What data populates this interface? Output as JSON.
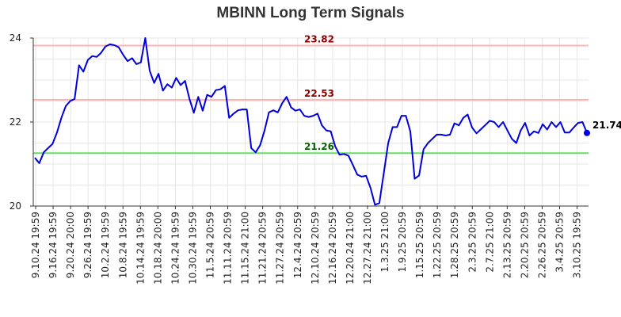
{
  "chart_data": {
    "type": "line",
    "title": "MBINN Long Term Signals",
    "xlabel": "",
    "ylabel": "",
    "ylim": [
      20,
      24
    ],
    "yticks": [
      "20",
      "22",
      "24"
    ],
    "grid": true,
    "x_tick_labels": [
      "9.10.24 19:59",
      "9.16.24 19:59",
      "9.20.24 20:00",
      "9.26.24 19:59",
      "10.2.24 19:59",
      "10.8.24 19:59",
      "10.14.24 19:59",
      "10.18.24 20:00",
      "10.24.24 19:59",
      "10.30.24 19:59",
      "11.5.24 20:59",
      "11.11.24 20:59",
      "11.15.24 21:00",
      "11.21.24 20:59",
      "11.27.24 20:59",
      "12.4.24 20:59",
      "12.10.24 20:59",
      "12.16.24 20:59",
      "12.20.24 21:00",
      "12.27.24 21:00",
      "1.3.25 21:00",
      "1.9.25 20:59",
      "1.15.25 20:59",
      "1.22.25 20:59",
      "1.28.25 20:59",
      "2.3.25 20:59",
      "2.7.25 21:00",
      "2.13.25 20:59",
      "2.20.25 20:59",
      "2.26.25 20:59",
      "3.4.25 20:59",
      "3.10.25 19:59"
    ],
    "levels": [
      {
        "label": "23.82",
        "value": 23.82,
        "color": "#ffb3b3",
        "text_color": "#8b0000"
      },
      {
        "label": "22.53",
        "value": 22.53,
        "color": "#ffb3b3",
        "text_color": "#8b0000"
      },
      {
        "label": "21.26",
        "value": 21.26,
        "color": "#66dd66",
        "text_color": "#006400"
      }
    ],
    "last_value_label": "21.74",
    "series": [
      {
        "color": "#0000dd",
        "values": [
          21.15,
          21.02,
          21.28,
          21.38,
          21.48,
          21.75,
          22.1,
          22.38,
          22.5,
          22.55,
          23.35,
          23.2,
          23.48,
          23.57,
          23.55,
          23.65,
          23.8,
          23.85,
          23.83,
          23.78,
          23.6,
          23.45,
          23.52,
          23.38,
          23.42,
          24.0,
          23.22,
          22.93,
          23.15,
          22.75,
          22.9,
          22.82,
          23.05,
          22.88,
          22.98,
          22.55,
          22.22,
          22.6,
          22.27,
          22.65,
          22.6,
          22.76,
          22.78,
          22.86,
          22.1,
          22.2,
          22.28,
          22.3,
          22.3,
          21.38,
          21.28,
          21.45,
          21.8,
          22.23,
          22.28,
          22.23,
          22.45,
          22.6,
          22.35,
          22.27,
          22.3,
          22.15,
          22.12,
          22.15,
          22.2,
          21.92,
          21.8,
          21.78,
          21.42,
          21.22,
          21.24,
          21.2,
          20.98,
          20.75,
          20.7,
          20.72,
          20.43,
          20.03,
          20.07,
          20.78,
          21.5,
          21.88,
          21.88,
          22.15,
          22.15,
          21.78,
          20.65,
          20.73,
          21.35,
          21.5,
          21.6,
          21.7,
          21.7,
          21.68,
          21.7,
          21.97,
          21.92,
          22.1,
          22.18,
          21.87,
          21.73,
          21.83,
          21.93,
          22.03,
          22.0,
          21.88,
          22.0,
          21.8,
          21.6,
          21.5,
          21.8,
          21.98,
          21.68,
          21.78,
          21.74,
          21.95,
          21.82,
          22.0,
          21.88,
          22.0,
          21.75,
          21.75,
          21.87,
          21.98,
          22.0,
          21.74
        ]
      }
    ]
  }
}
